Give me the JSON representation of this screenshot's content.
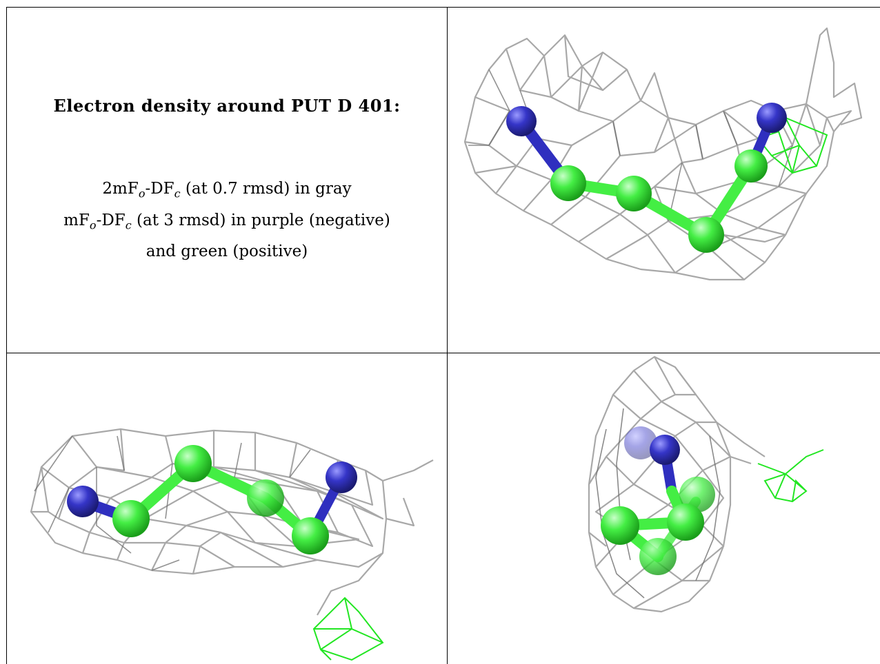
{
  "header": {
    "title": "Electron density around PUT D 401:"
  },
  "legend": {
    "line1": {
      "prefix": "2mF",
      "sub1": "o",
      "mid": "-DF",
      "sub2": "c",
      "suffix": " (at 0.7 rmsd) in gray"
    },
    "line2": {
      "prefix": "mF",
      "sub1": "o",
      "mid": "-DF",
      "sub2": "c",
      "suffix": " (at 3 rmsd) in purple (negative)"
    },
    "line3": "and green (positive)"
  },
  "colors": {
    "mesh_2fofc": "#a8a8a8",
    "mesh_dark": "#707070",
    "diff_positive": "#22e622",
    "diff_negative": "#7f40ff",
    "carbon": "#44ee44",
    "nitrogen": "#2f2fbf"
  },
  "panels": [
    {
      "name": "view-1",
      "view": "top-right"
    },
    {
      "name": "view-2",
      "view": "bottom-left"
    },
    {
      "name": "view-3",
      "view": "bottom-right"
    }
  ]
}
